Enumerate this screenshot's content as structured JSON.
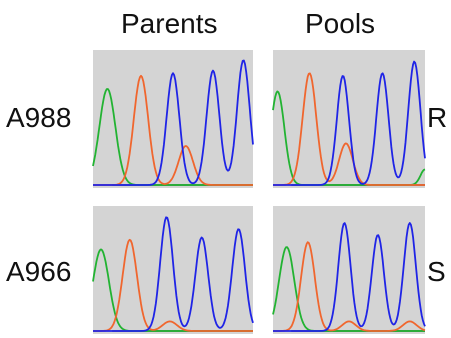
{
  "column_headers": [
    "Parents",
    "Pools"
  ],
  "row_labels": [
    "A988",
    "A966"
  ],
  "side_labels": [
    "R",
    "S"
  ],
  "colors": {
    "panel_bg": "#d4d4d4",
    "blue": "#1f24e6",
    "green": "#22b332",
    "orange": "#f0662e",
    "black": "#1a1a1a"
  },
  "panels": [
    {
      "row": 0,
      "col": 0,
      "peaks": [
        {
          "color": "green",
          "x": 0.09,
          "h": 0.74,
          "w": 0.05
        },
        {
          "color": "orange",
          "x": 0.3,
          "h": 0.84,
          "w": 0.045
        },
        {
          "color": "orange",
          "x": 0.58,
          "h": 0.3,
          "w": 0.045
        },
        {
          "color": "blue",
          "x": 0.5,
          "h": 0.86,
          "w": 0.04
        },
        {
          "color": "blue",
          "x": 0.75,
          "h": 0.88,
          "w": 0.04
        },
        {
          "color": "blue",
          "x": 0.94,
          "h": 0.96,
          "w": 0.04
        }
      ]
    },
    {
      "row": 0,
      "col": 1,
      "peaks": [
        {
          "color": "green",
          "x": 0.03,
          "h": 0.72,
          "w": 0.045
        },
        {
          "color": "orange",
          "x": 0.24,
          "h": 0.86,
          "w": 0.045
        },
        {
          "color": "orange",
          "x": 0.48,
          "h": 0.32,
          "w": 0.045
        },
        {
          "color": "blue",
          "x": 0.46,
          "h": 0.84,
          "w": 0.04
        },
        {
          "color": "blue",
          "x": 0.72,
          "h": 0.86,
          "w": 0.04
        },
        {
          "color": "blue",
          "x": 0.93,
          "h": 0.95,
          "w": 0.04
        },
        {
          "color": "green",
          "x": 1.0,
          "h": 0.12,
          "w": 0.03
        }
      ]
    },
    {
      "row": 1,
      "col": 0,
      "peaks": [
        {
          "color": "green",
          "x": 0.05,
          "h": 0.68,
          "w": 0.05
        },
        {
          "color": "orange",
          "x": 0.23,
          "h": 0.76,
          "w": 0.045
        },
        {
          "color": "orange",
          "x": 0.48,
          "h": 0.08,
          "w": 0.045
        },
        {
          "color": "blue",
          "x": 0.46,
          "h": 0.95,
          "w": 0.04
        },
        {
          "color": "blue",
          "x": 0.68,
          "h": 0.78,
          "w": 0.04
        },
        {
          "color": "blue",
          "x": 0.91,
          "h": 0.85,
          "w": 0.04
        }
      ]
    },
    {
      "row": 1,
      "col": 1,
      "peaks": [
        {
          "color": "green",
          "x": 0.09,
          "h": 0.7,
          "w": 0.05
        },
        {
          "color": "orange",
          "x": 0.23,
          "h": 0.74,
          "w": 0.045
        },
        {
          "color": "orange",
          "x": 0.5,
          "h": 0.08,
          "w": 0.045
        },
        {
          "color": "orange",
          "x": 0.9,
          "h": 0.08,
          "w": 0.045
        },
        {
          "color": "blue",
          "x": 0.47,
          "h": 0.9,
          "w": 0.04
        },
        {
          "color": "blue",
          "x": 0.69,
          "h": 0.8,
          "w": 0.04
        },
        {
          "color": "blue",
          "x": 0.9,
          "h": 0.9,
          "w": 0.04
        }
      ]
    }
  ]
}
